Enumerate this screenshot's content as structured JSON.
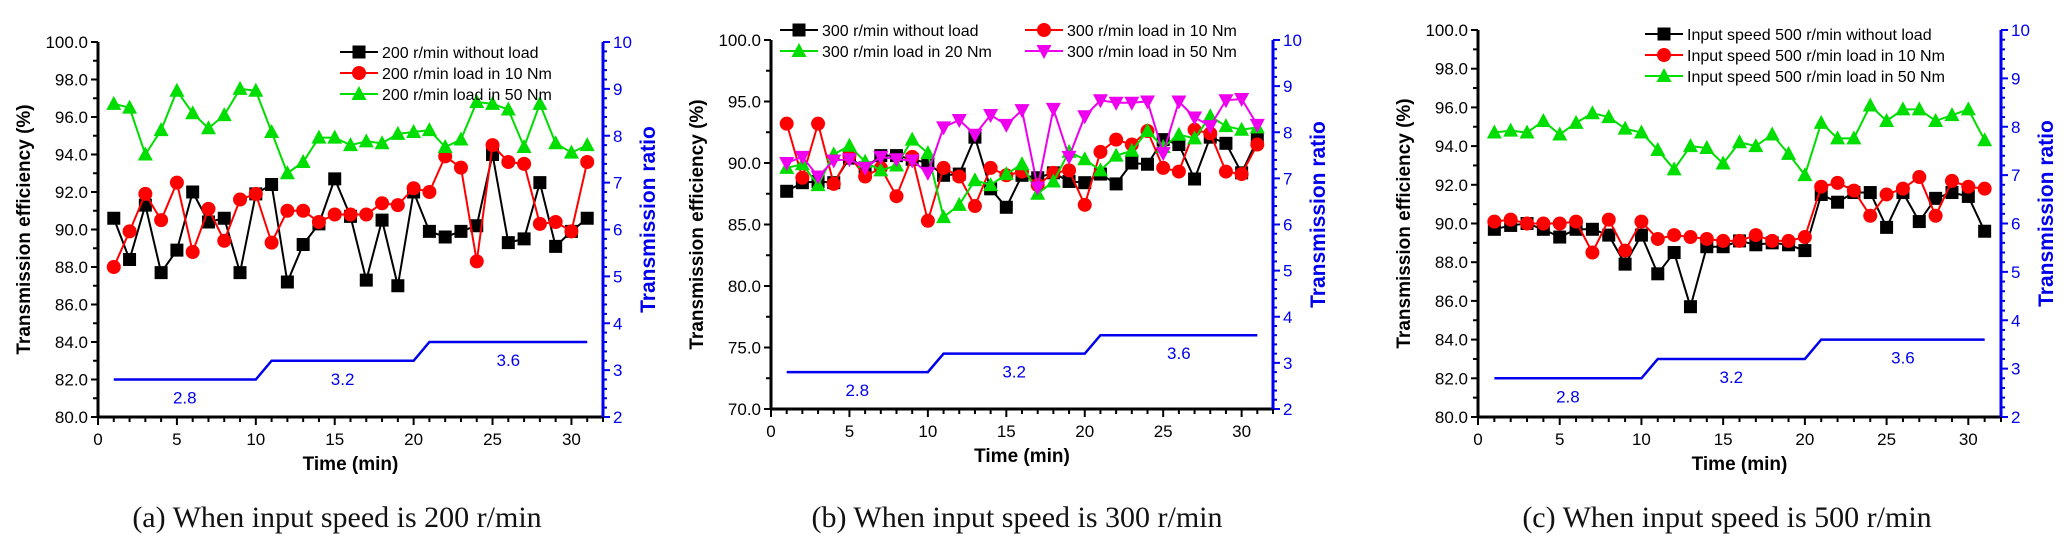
{
  "chart_data": [
    {
      "type": "line",
      "caption": "(a) When input speed is 200 r/min",
      "xlabel": "Time (min)",
      "ylabel": "Transmission efficiency (%)",
      "y2label": "Transmission ratio",
      "xlim": [
        0,
        32
      ],
      "ylim": [
        80,
        100
      ],
      "y2lim": [
        2,
        10
      ],
      "xticks": [
        "0",
        "5",
        "10",
        "15",
        "20",
        "25",
        "30"
      ],
      "yticks": [
        "80.0",
        "82.0",
        "84.0",
        "86.0",
        "88.0",
        "90.0",
        "92.0",
        "94.0",
        "96.0",
        "98.0",
        "100.0"
      ],
      "y2ticks": [
        "2",
        "3",
        "4",
        "5",
        "6",
        "7",
        "8",
        "9",
        "10"
      ],
      "legend_position": "top-right",
      "x": [
        1,
        2,
        3,
        4,
        5,
        6,
        7,
        8,
        9,
        10,
        11,
        12,
        13,
        14,
        15,
        16,
        17,
        18,
        19,
        20,
        21,
        22,
        23,
        24,
        25,
        26,
        27,
        28,
        29,
        30,
        31
      ],
      "series": [
        {
          "name": "200 r/min without load",
          "color": "#000000",
          "marker": "square",
          "values": [
            90.6,
            88.4,
            91.3,
            87.7,
            88.9,
            92.0,
            90.4,
            90.6,
            87.7,
            91.9,
            92.4,
            87.2,
            89.2,
            90.3,
            92.7,
            90.7,
            87.3,
            90.5,
            87.0,
            92.0,
            89.9,
            89.6,
            89.9,
            90.2,
            94.0,
            89.3,
            89.5,
            92.5,
            89.1,
            89.9,
            90.6
          ]
        },
        {
          "name": "200 r/min load in 10 Nm",
          "color": "#ff0000",
          "marker": "circle",
          "values": [
            88.0,
            89.9,
            91.9,
            90.5,
            92.5,
            88.8,
            91.1,
            89.4,
            91.6,
            91.9,
            89.3,
            91.0,
            91.0,
            90.4,
            90.8,
            90.8,
            90.8,
            91.4,
            91.3,
            92.2,
            92.0,
            93.9,
            93.3,
            88.3,
            94.5,
            93.6,
            93.5,
            90.3,
            90.4,
            89.9,
            93.6
          ]
        },
        {
          "name": "200 r/min load in 50 Nm",
          "color": "#00dd00",
          "marker": "triangle-up",
          "values": [
            96.7,
            96.5,
            94.0,
            95.3,
            97.4,
            96.2,
            95.4,
            96.1,
            97.5,
            97.4,
            95.2,
            93.0,
            93.6,
            94.9,
            94.9,
            94.5,
            94.7,
            94.6,
            95.1,
            95.2,
            95.3,
            94.4,
            94.8,
            96.8,
            96.7,
            96.4,
            94.4,
            96.7,
            94.6,
            94.1,
            94.5
          ]
        }
      ],
      "ratio": {
        "name": "Transmission ratio",
        "color": "#0000ee",
        "segments": [
          {
            "x_start": 1,
            "x_end": 10,
            "value": 2.8,
            "label": "2.8"
          },
          {
            "x_start": 11,
            "x_end": 20,
            "value": 3.2,
            "label": "3.2"
          },
          {
            "x_start": 21,
            "x_end": 31,
            "value": 3.6,
            "label": "3.6"
          }
        ]
      }
    },
    {
      "type": "line",
      "caption": "(b) When input speed is 300 r/min",
      "xlabel": "Time (min)",
      "ylabel": "Transmission efficiency (%)",
      "y2label": "Transmission ratio",
      "xlim": [
        0,
        32
      ],
      "ylim": [
        70,
        100
      ],
      "y2lim": [
        2,
        10
      ],
      "xticks": [
        "0",
        "5",
        "10",
        "15",
        "20",
        "25",
        "30"
      ],
      "yticks": [
        "70.0",
        "75.0",
        "80.0",
        "85.0",
        "90.0",
        "95.0",
        "100.0"
      ],
      "y2ticks": [
        "2",
        "3",
        "4",
        "5",
        "6",
        "7",
        "8",
        "9",
        "10"
      ],
      "legend_position": "top",
      "x": [
        1,
        2,
        3,
        4,
        5,
        6,
        7,
        8,
        9,
        10,
        11,
        12,
        13,
        14,
        15,
        16,
        17,
        18,
        19,
        20,
        21,
        22,
        23,
        24,
        25,
        26,
        27,
        28,
        29,
        30,
        31
      ],
      "series": [
        {
          "name": "300 r/min without load",
          "color": "#000000",
          "marker": "square",
          "values": [
            87.7,
            88.4,
            88.5,
            88.4,
            90.4,
            89.6,
            90.6,
            90.6,
            90.3,
            90.0,
            89.0,
            89.1,
            92.1,
            87.9,
            86.4,
            89.0,
            88.8,
            89.2,
            88.5,
            88.4,
            89.1,
            88.3,
            90.0,
            89.9,
            91.9,
            91.5,
            88.7,
            92.1,
            91.6,
            89.2,
            91.9
          ]
        },
        {
          "name": "300 r/min load in 10 Nm",
          "color": "#ff0000",
          "marker": "circle",
          "values": [
            93.2,
            88.8,
            93.2,
            88.3,
            90.6,
            88.9,
            89.6,
            87.3,
            90.5,
            85.3,
            89.6,
            88.9,
            86.5,
            89.6,
            89.0,
            89.3,
            88.2,
            89.2,
            89.4,
            86.6,
            90.9,
            91.9,
            91.5,
            92.6,
            89.6,
            89.3,
            92.7,
            92.4,
            89.3,
            89.1,
            91.5
          ]
        },
        {
          "name": "300 r/min load in 20 Nm",
          "color": "#00dd00",
          "marker": "triangle-up",
          "values": [
            89.6,
            89.9,
            88.2,
            90.7,
            91.4,
            90.1,
            89.4,
            89.8,
            91.9,
            90.8,
            85.6,
            86.6,
            88.6,
            88.2,
            89.1,
            89.9,
            87.5,
            88.5,
            90.9,
            90.3,
            89.4,
            90.6,
            91.0,
            92.6,
            91.3,
            92.3,
            92.0,
            93.8,
            93.0,
            92.7,
            92.9
          ]
        },
        {
          "name": "300 r/min load in 50 Nm",
          "color": "#ee00ee",
          "marker": "triangle-down",
          "values": [
            90.0,
            90.5,
            88.9,
            90.2,
            90.3,
            89.6,
            90.5,
            90.3,
            90.2,
            89.2,
            92.9,
            93.5,
            92.3,
            93.9,
            93.1,
            94.3,
            88.0,
            94.4,
            90.5,
            93.8,
            95.1,
            94.9,
            94.9,
            95.0,
            90.8,
            95.0,
            93.7,
            93.0,
            95.1,
            95.2,
            93.1
          ]
        }
      ],
      "ratio": {
        "name": "Transmission ratio",
        "color": "#0000ee",
        "segments": [
          {
            "x_start": 1,
            "x_end": 10,
            "value": 2.8,
            "label": "2.8"
          },
          {
            "x_start": 11,
            "x_end": 20,
            "value": 3.2,
            "label": "3.2"
          },
          {
            "x_start": 21,
            "x_end": 31,
            "value": 3.6,
            "label": "3.6"
          }
        ]
      }
    },
    {
      "type": "line",
      "caption": "(c) When input speed is 500 r/min",
      "xlabel": "Time (min)",
      "ylabel": "Transmission efficiency (%)",
      "y2label": "Transmission ratio",
      "xlim": [
        0,
        32
      ],
      "ylim": [
        80,
        100
      ],
      "y2lim": [
        2,
        10
      ],
      "xticks": [
        "0",
        "5",
        "10",
        "15",
        "20",
        "25",
        "30"
      ],
      "yticks": [
        "80.0",
        "82.0",
        "84.0",
        "86.0",
        "88.0",
        "90.0",
        "92.0",
        "94.0",
        "96.0",
        "98.0",
        "100.0"
      ],
      "y2ticks": [
        "2",
        "3",
        "4",
        "5",
        "6",
        "7",
        "8",
        "9",
        "10"
      ],
      "legend_position": "top-right",
      "x": [
        1,
        2,
        3,
        4,
        5,
        6,
        7,
        8,
        9,
        10,
        11,
        12,
        13,
        14,
        15,
        16,
        17,
        18,
        19,
        20,
        21,
        22,
        23,
        24,
        25,
        26,
        27,
        28,
        29,
        30,
        31
      ],
      "series": [
        {
          "name": "Input speed 500 r/min without load",
          "color": "#000000",
          "marker": "square",
          "values": [
            89.7,
            89.9,
            90.0,
            89.7,
            89.3,
            89.7,
            89.7,
            89.4,
            87.9,
            89.4,
            87.4,
            88.5,
            85.7,
            88.8,
            88.8,
            89.1,
            88.9,
            89.0,
            88.9,
            88.6,
            91.5,
            91.1,
            91.6,
            91.6,
            89.8,
            91.6,
            90.1,
            91.3,
            91.6,
            91.4,
            89.6
          ]
        },
        {
          "name": "Input speed 500 r/min load in 10 Nm",
          "color": "#ff0000",
          "marker": "circle",
          "values": [
            90.1,
            90.2,
            90.0,
            90.0,
            90.0,
            90.1,
            88.5,
            90.2,
            88.6,
            90.1,
            89.2,
            89.4,
            89.3,
            89.2,
            89.1,
            89.1,
            89.4,
            89.1,
            89.1,
            89.3,
            91.9,
            92.1,
            91.7,
            90.4,
            91.5,
            91.8,
            92.4,
            90.4,
            92.2,
            91.9,
            91.8
          ]
        },
        {
          "name": "Input speed 500 r/min load in 50 Nm",
          "color": "#00dd00",
          "marker": "triangle-up",
          "values": [
            94.7,
            94.8,
            94.7,
            95.3,
            94.6,
            95.2,
            95.7,
            95.5,
            94.9,
            94.7,
            93.8,
            92.8,
            94.0,
            93.9,
            93.1,
            94.2,
            94.0,
            94.6,
            93.6,
            92.5,
            95.2,
            94.4,
            94.4,
            96.1,
            95.3,
            95.9,
            95.9,
            95.3,
            95.6,
            95.9,
            94.3
          ]
        }
      ],
      "ratio": {
        "name": "Transmission ratio",
        "color": "#0000ee",
        "segments": [
          {
            "x_start": 1,
            "x_end": 10,
            "value": 2.8,
            "label": "2.8"
          },
          {
            "x_start": 11,
            "x_end": 20,
            "value": 3.2,
            "label": "3.2"
          },
          {
            "x_start": 21,
            "x_end": 31,
            "value": 3.6,
            "label": "3.6"
          }
        ]
      }
    }
  ]
}
